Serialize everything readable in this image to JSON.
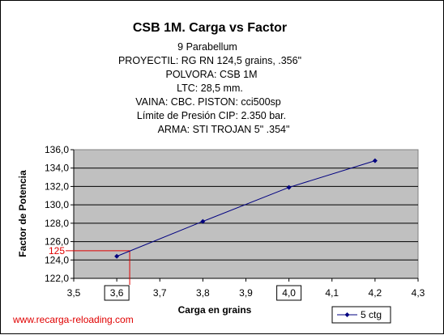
{
  "chart_data": {
    "type": "line",
    "title": "CSB 1M. Carga vs Factor",
    "subtitle_lines": [
      "9 Parabellum",
      "PROYECTIL: RG RN 124,5 grains, .356\"",
      "POLVORA: CSB 1M",
      "LTC: 28,5 mm.",
      "VAINA: CBC. PISTON: cci500sp",
      "Límite de Presión CIP: 2.350 bar.",
      "ARMA: STI TROJAN 5\"  .354\""
    ],
    "xlabel": "Carga en grains",
    "ylabel": "Factor de Potencia",
    "xlim": [
      3.5,
      4.3
    ],
    "ylim": [
      122.0,
      136.0
    ],
    "x_ticks": [
      "3,5",
      "3,6",
      "3,7",
      "3,8",
      "3,9",
      "4,0",
      "4,1",
      "4,2",
      "4,3"
    ],
    "y_ticks": [
      "122,0",
      "124,0",
      "126,0",
      "128,0",
      "130,0",
      "132,0",
      "134,0",
      "136,0"
    ],
    "boxed_x_ticks": [
      "3,6",
      "4,0"
    ],
    "grid": "horizontal",
    "plot_background": "#c0c0c0",
    "series": [
      {
        "name": "5 ctg",
        "color": "#000080",
        "x": [
          3.6,
          3.8,
          4.0,
          4.2
        ],
        "y": [
          124.4,
          128.2,
          131.9,
          134.8
        ]
      }
    ],
    "annotation": {
      "label": "125",
      "x": 3.63,
      "y": 125.0,
      "color": "#e00000"
    },
    "legend_position": "bottom-right"
  },
  "watermark": "www.recarga-reloading.com"
}
